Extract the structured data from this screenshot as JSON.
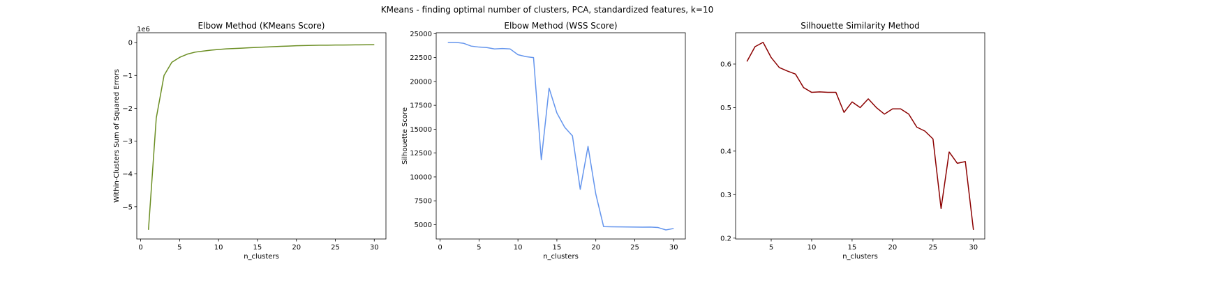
{
  "figure": {
    "suptitle": "KMeans - finding optimal number of clusters, PCA, standardized features, k=10"
  },
  "chart_data": [
    {
      "type": "line",
      "title": "Elbow Method (KMeans Score)",
      "xlabel": "n_clusters",
      "ylabel": "Within-Clusters Sum of Squared Errors",
      "offset_text": "1e6",
      "xlim": [
        -0.5,
        31.5
      ],
      "ylim": [
        -5.98,
        0.3
      ],
      "xticks": [
        0,
        5,
        10,
        15,
        20,
        25,
        30
      ],
      "xtick_labels": [
        "0",
        "5",
        "10",
        "15",
        "20",
        "25",
        "30"
      ],
      "yticks": [
        0,
        -1,
        -2,
        -3,
        -4,
        -5
      ],
      "ytick_labels": [
        "0",
        "−1",
        "−2",
        "−3",
        "−4",
        "−5"
      ],
      "grid": false,
      "series": [
        {
          "color": "#6b8e23",
          "x": [
            1,
            2,
            3,
            4,
            5,
            6,
            7,
            8,
            9,
            10,
            11,
            12,
            13,
            14,
            15,
            16,
            17,
            18,
            19,
            20,
            21,
            22,
            23,
            24,
            25,
            26,
            27,
            28,
            29,
            30
          ],
          "y": [
            -5.7,
            -2.3,
            -1.0,
            -0.6,
            -0.45,
            -0.35,
            -0.29,
            -0.26,
            -0.23,
            -0.21,
            -0.19,
            -0.18,
            -0.17,
            -0.155,
            -0.145,
            -0.135,
            -0.125,
            -0.115,
            -0.105,
            -0.095,
            -0.09,
            -0.085,
            -0.08,
            -0.078,
            -0.075,
            -0.073,
            -0.07,
            -0.068,
            -0.066,
            -0.064
          ]
        }
      ]
    },
    {
      "type": "line",
      "title": "Elbow Method (WSS Score)",
      "xlabel": "n_clusters",
      "ylabel": "Silhouette Score",
      "xlim": [
        -0.5,
        31.5
      ],
      "ylim": [
        3500,
        25100
      ],
      "xticks": [
        0,
        5,
        10,
        15,
        20,
        25,
        30
      ],
      "xtick_labels": [
        "0",
        "5",
        "10",
        "15",
        "20",
        "25",
        "30"
      ],
      "yticks": [
        5000,
        7500,
        10000,
        12500,
        15000,
        17500,
        20000,
        22500,
        25000
      ],
      "ytick_labels": [
        "5000",
        "7500",
        "10000",
        "12500",
        "15000",
        "17500",
        "20000",
        "22500",
        "25000"
      ],
      "grid": false,
      "series": [
        {
          "color": "#6495ed",
          "x": [
            1,
            2,
            3,
            4,
            5,
            6,
            7,
            8,
            9,
            10,
            11,
            12,
            13,
            14,
            15,
            16,
            17,
            18,
            19,
            20,
            21,
            22,
            23,
            24,
            25,
            26,
            27,
            28,
            29,
            30
          ],
          "y": [
            24100,
            24100,
            24000,
            23700,
            23600,
            23550,
            23400,
            23450,
            23400,
            22800,
            22600,
            22500,
            11800,
            19300,
            16700,
            15200,
            14300,
            8700,
            13200,
            8200,
            4800,
            4780,
            4770,
            4760,
            4750,
            4740,
            4750,
            4700,
            4450,
            4600
          ]
        }
      ]
    },
    {
      "type": "line",
      "title": "Silhouette Similarity Method",
      "xlabel": "n_clusters",
      "ylabel": "",
      "xlim": [
        0.6,
        31.4
      ],
      "ylim": [
        0.198,
        0.672
      ],
      "xticks": [
        5,
        10,
        15,
        20,
        25,
        30
      ],
      "xtick_labels": [
        "5",
        "10",
        "15",
        "20",
        "25",
        "30"
      ],
      "yticks": [
        0.2,
        0.3,
        0.4,
        0.5,
        0.6
      ],
      "ytick_labels": [
        "0.2",
        "0.3",
        "0.4",
        "0.5",
        "0.6"
      ],
      "grid": false,
      "series": [
        {
          "color": "#8b0000",
          "x": [
            2,
            3,
            4,
            5,
            6,
            7,
            8,
            9,
            10,
            11,
            12,
            13,
            14,
            15,
            16,
            17,
            18,
            19,
            20,
            21,
            22,
            23,
            24,
            25,
            26,
            27,
            28,
            29,
            30
          ],
          "y": [
            0.606,
            0.64,
            0.65,
            0.615,
            0.592,
            0.584,
            0.577,
            0.546,
            0.535,
            0.536,
            0.535,
            0.535,
            0.489,
            0.513,
            0.5,
            0.52,
            0.5,
            0.485,
            0.497,
            0.497,
            0.485,
            0.455,
            0.446,
            0.428,
            0.268,
            0.398,
            0.372,
            0.376,
            0.219
          ]
        }
      ]
    }
  ]
}
